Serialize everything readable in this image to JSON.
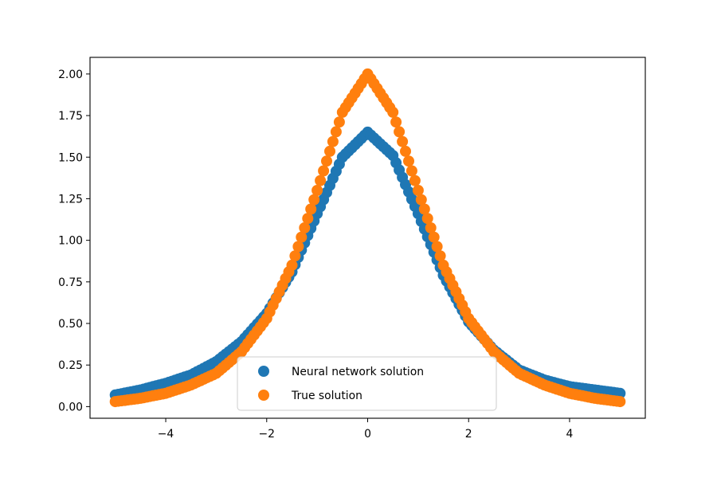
{
  "chart_data": {
    "type": "scatter",
    "title": "",
    "xlabel": "",
    "ylabel": "",
    "xlim": [
      -5.5,
      5.5
    ],
    "ylim": [
      -0.07,
      2.1
    ],
    "x_ticks": [
      -4,
      -2,
      0,
      2,
      4
    ],
    "x_tick_labels": [
      "−4",
      "−2",
      "0",
      "2",
      "4"
    ],
    "y_ticks": [
      0.0,
      0.25,
      0.5,
      0.75,
      1.0,
      1.25,
      1.5,
      1.75,
      2.0
    ],
    "y_tick_labels": [
      "0.00",
      "0.25",
      "0.50",
      "0.75",
      "1.00",
      "1.25",
      "1.50",
      "1.75",
      "2.00"
    ],
    "grid": false,
    "legend_position": "lower center",
    "series": [
      {
        "name": "Neural network solution",
        "color": "#1f77b4",
        "x": [
          -5.0,
          -4.5,
          -4.0,
          -3.5,
          -3.0,
          -2.5,
          -2.0,
          -1.5,
          -1.0,
          -0.5,
          0.0,
          0.5,
          1.0,
          1.5,
          2.0,
          2.5,
          3.0,
          3.5,
          4.0,
          4.5,
          5.0
        ],
        "y": [
          0.07,
          0.1,
          0.14,
          0.19,
          0.27,
          0.39,
          0.56,
          0.81,
          1.16,
          1.5,
          1.65,
          1.51,
          1.16,
          0.79,
          0.51,
          0.34,
          0.22,
          0.16,
          0.12,
          0.1,
          0.08
        ]
      },
      {
        "name": "True solution",
        "color": "#ff7f0e",
        "x": [
          -5.0,
          -4.5,
          -4.0,
          -3.5,
          -3.0,
          -2.5,
          -2.0,
          -1.5,
          -1.0,
          -0.5,
          0.0,
          0.5,
          1.0,
          1.5,
          2.0,
          2.5,
          3.0,
          3.5,
          4.0,
          4.5,
          5.0
        ],
        "y": [
          0.03,
          0.05,
          0.08,
          0.13,
          0.2,
          0.33,
          0.53,
          0.85,
          1.3,
          1.77,
          2.0,
          1.77,
          1.3,
          0.85,
          0.53,
          0.33,
          0.2,
          0.13,
          0.08,
          0.05,
          0.03
        ]
      }
    ]
  }
}
